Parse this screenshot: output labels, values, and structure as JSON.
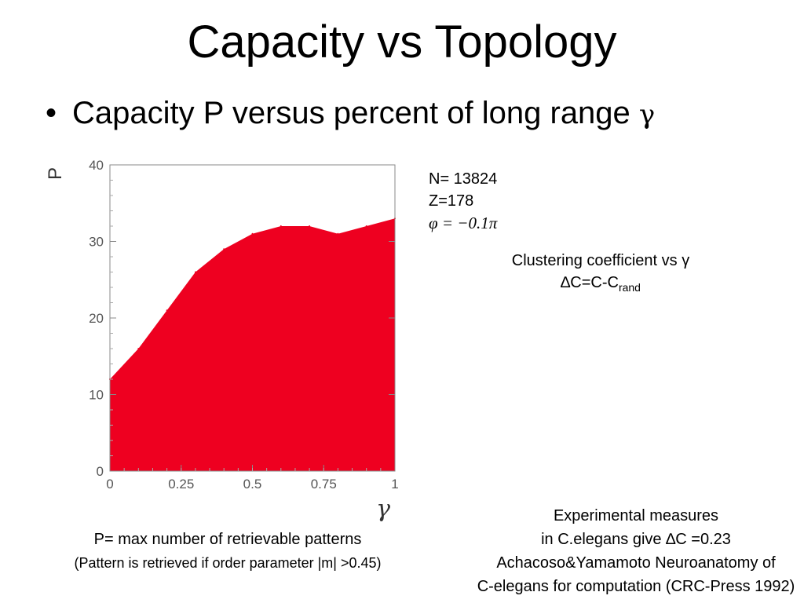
{
  "slide": {
    "title": "Capacity vs Topology",
    "bullet_dot": "•",
    "bullet_text": "Capacity P versus percent of long range ",
    "bullet_gamma": "γ"
  },
  "params": {
    "n": "N= 13824",
    "z": "Z=178",
    "phi": "φ = −0.1π"
  },
  "clustering": {
    "line1": "Clustering coefficient vs γ",
    "line2_main": "∆C=C-C",
    "line2_sub": "rand"
  },
  "p_definition": {
    "line1": "P= max number of retrievable patterns",
    "line2": "(Pattern is retrieved if order parameter |m| >0.45)"
  },
  "experimental": {
    "line1": "Experimental measures",
    "line2": "in C.elegans give ∆C =0.23",
    "line3": "Achacoso&Yamamoto Neuroanatomy of",
    "line4": "C-elegans for computation (CRC-Press 1992)"
  },
  "chart_data": {
    "type": "area",
    "ylabel": "P",
    "xlabel": "γ",
    "xlim": [
      0,
      1
    ],
    "ylim": [
      0,
      40
    ],
    "x_ticks": [
      0,
      0.25,
      0.5,
      0.75,
      1
    ],
    "x_tick_labels": [
      "0",
      "0.25",
      "0.5",
      "0.75",
      "1"
    ],
    "y_ticks": [
      0,
      10,
      20,
      30,
      40
    ],
    "y_tick_labels": [
      "0",
      "10",
      "20",
      "30",
      "40"
    ],
    "x": [
      0,
      0.1,
      0.2,
      0.3,
      0.4,
      0.5,
      0.6,
      0.7,
      0.8,
      0.9,
      1.0
    ],
    "y": [
      12,
      16,
      21,
      26,
      29,
      31,
      32,
      32,
      31,
      32,
      33
    ],
    "fill_color": "#ee0020",
    "grid": false
  }
}
